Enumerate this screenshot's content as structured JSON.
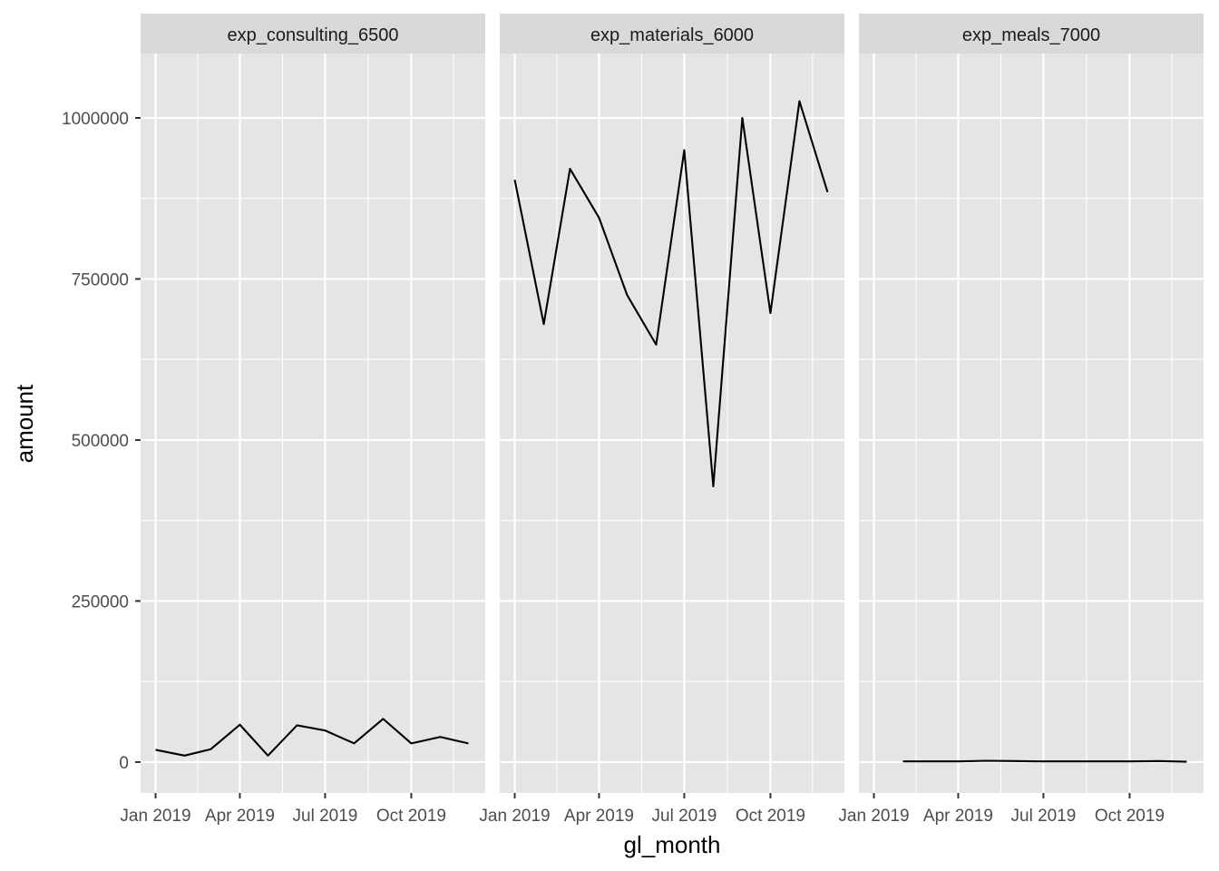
{
  "chart_data": {
    "type": "line",
    "xlabel": "gl_month",
    "ylabel": "amount",
    "ylim": [
      -48000,
      1100000
    ],
    "yticks": [
      0,
      250000,
      500000,
      750000,
      1000000
    ],
    "ytick_labels": [
      "0",
      "250000",
      "500000",
      "750000",
      "1000000"
    ],
    "xlim": [
      "2018-12-16",
      "2019-12-19"
    ],
    "xticks": [
      "2019-01-01",
      "2019-04-01",
      "2019-07-01",
      "2019-10-01"
    ],
    "xtick_labels": [
      "Jan 2019",
      "Apr 2019",
      "Jul 2019",
      "Oct 2019"
    ],
    "grid": true,
    "line_color": "#000000",
    "panel_background": "#e5e5e5",
    "strip_background": "#d9d9d9",
    "grid_color": "#ffffff",
    "facets": [
      {
        "label": "exp_consulting_6500",
        "x": [
          "2019-01-01",
          "2019-02-01",
          "2019-03-01",
          "2019-04-01",
          "2019-05-01",
          "2019-06-01",
          "2019-07-01",
          "2019-08-01",
          "2019-09-01",
          "2019-10-01",
          "2019-11-01",
          "2019-12-01"
        ],
        "y": [
          19000,
          10000,
          20000,
          58000,
          10000,
          57000,
          49000,
          29000,
          67000,
          29000,
          39000,
          29000
        ]
      },
      {
        "label": "exp_materials_6000",
        "x": [
          "2019-01-01",
          "2019-02-01",
          "2019-03-01",
          "2019-04-01",
          "2019-05-01",
          "2019-06-01",
          "2019-07-01",
          "2019-08-01",
          "2019-09-01",
          "2019-10-01",
          "2019-11-01",
          "2019-12-01"
        ],
        "y": [
          904000,
          680000,
          921000,
          845000,
          725000,
          648000,
          950000,
          428000,
          1000000,
          697000,
          1026000,
          885000
        ]
      },
      {
        "label": "exp_meals_7000",
        "x": [
          "2019-02-01",
          "2019-03-01",
          "2019-04-01",
          "2019-05-01",
          "2019-06-01",
          "2019-07-01",
          "2019-08-01",
          "2019-09-01",
          "2019-10-01",
          "2019-11-01",
          "2019-12-01"
        ],
        "y": [
          1000,
          1000,
          1000,
          2000,
          1500,
          1000,
          1000,
          1000,
          1000,
          1500,
          500
        ]
      }
    ]
  }
}
